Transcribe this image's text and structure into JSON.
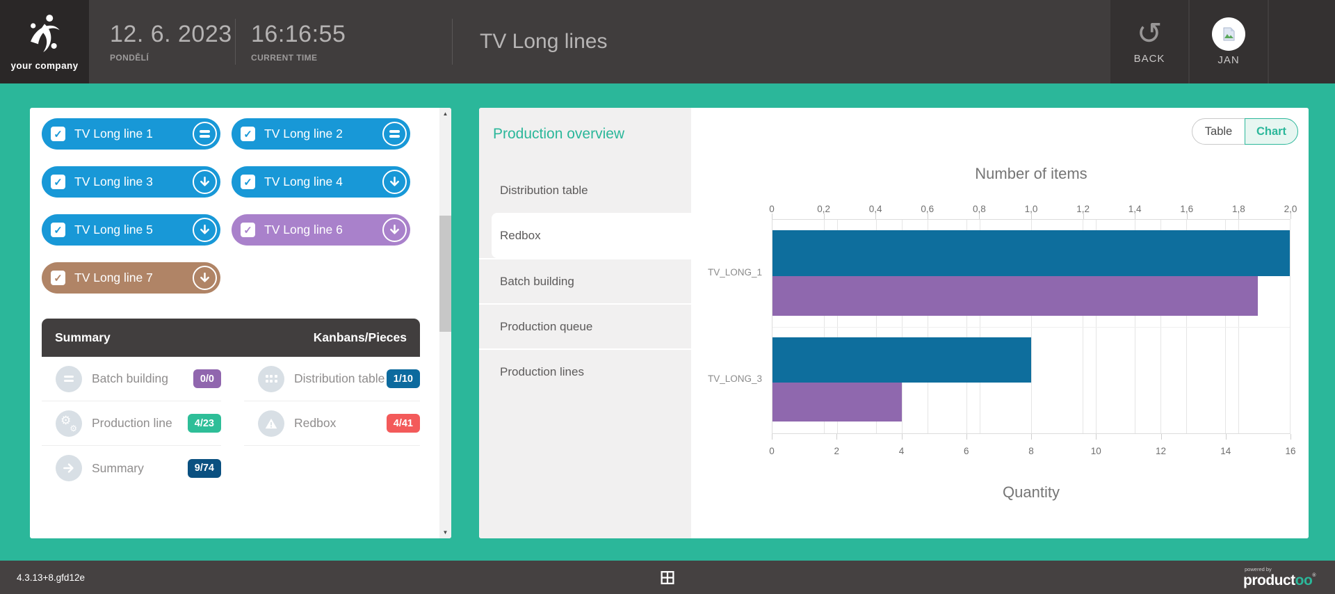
{
  "header": {
    "logo_text": "your company",
    "date": "12. 6. 2023",
    "day_label": "PONDĚLÍ",
    "time": "16:16:55",
    "time_label": "CURRENT TIME",
    "title": "TV Long lines",
    "back_label": "BACK",
    "user_label": "JAN"
  },
  "lines_panel": {
    "buttons": [
      {
        "label": "TV Long line 1",
        "color": "#1898d7",
        "icon": "equals",
        "checked": true
      },
      {
        "label": "TV Long line 2",
        "color": "#1898d7",
        "icon": "equals",
        "checked": true
      },
      {
        "label": "TV Long line 3",
        "color": "#1898d7",
        "icon": "arrow-down",
        "checked": true
      },
      {
        "label": "TV Long line 4",
        "color": "#1898d7",
        "icon": "arrow-down",
        "checked": true
      },
      {
        "label": "TV Long line 5",
        "color": "#1898d7",
        "icon": "arrow-down",
        "checked": true
      },
      {
        "label": "TV Long line 6",
        "color": "#a981cb",
        "icon": "arrow-down",
        "checked": true
      },
      {
        "label": "TV Long line 7",
        "color": "#b08466",
        "icon": "arrow-down",
        "checked": true
      }
    ],
    "summary": {
      "header_left": "Summary",
      "header_right": "Kanbans/Pieces",
      "items": [
        {
          "label": "Batch building",
          "badge": "0/0",
          "badge_color": "#9066ae",
          "icon": "equals"
        },
        {
          "label": "Distribution table",
          "badge": "1/10",
          "badge_color": "#0c6a9e",
          "icon": "grid"
        },
        {
          "label": "Production line",
          "badge": "4/23",
          "badge_color": "#2ebe98",
          "icon": "gears"
        },
        {
          "label": "Redbox",
          "badge": "4/41",
          "badge_color": "#f35a5a",
          "icon": "warning"
        },
        {
          "label": "Summary",
          "badge": "9/74",
          "badge_color": "#0a5080",
          "icon": "arrow-right"
        }
      ]
    }
  },
  "overview_panel": {
    "heading": "Production overview",
    "menu": [
      {
        "label": "Distribution table",
        "selected": false
      },
      {
        "label": "Redbox",
        "selected": true
      },
      {
        "label": "Batch building",
        "selected": false
      },
      {
        "label": "Production queue",
        "selected": false
      },
      {
        "label": "Production lines",
        "selected": false
      }
    ],
    "toggle": {
      "table_label": "Table",
      "chart_label": "Chart",
      "active": "Chart"
    }
  },
  "chart_data": {
    "type": "bar",
    "orientation": "horizontal",
    "title": "Number of items",
    "xlabel_bottom": "Quantity",
    "categories": [
      "TV_LONG_1",
      "TV_LONG_3"
    ],
    "series": [
      {
        "name": "Number of items",
        "axis": "top",
        "color": "#0e6e9d",
        "values": [
          2,
          1
        ]
      },
      {
        "name": "Quantity",
        "axis": "bottom",
        "color": "#8f68ae",
        "values": [
          15,
          4
        ]
      }
    ],
    "top_axis": {
      "min": 0,
      "max": 2,
      "step": 0.2,
      "labels": [
        "0",
        "0,2",
        "0,4",
        "0,6",
        "0,8",
        "1,0",
        "1,2",
        "1,4",
        "1,6",
        "1,8",
        "2,0"
      ]
    },
    "bottom_axis": {
      "min": 0,
      "max": 16,
      "step": 2,
      "labels": [
        "0",
        "2",
        "4",
        "6",
        "8",
        "10",
        "12",
        "14",
        "16"
      ]
    },
    "grid": true,
    "legend": false
  },
  "footer": {
    "version": "4.3.13+8.gfd12e",
    "grid_icon": "table-grid",
    "powered_by": "powered by",
    "brand_prefix": "product",
    "brand_suffix": "oo"
  }
}
